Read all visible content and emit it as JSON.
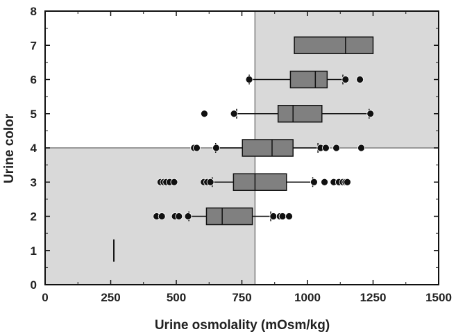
{
  "chart_data": {
    "type": "boxplot",
    "orientation": "horizontal",
    "xlabel": "Urine osmolality (mOsm/kg)",
    "ylabel": "Urine color",
    "xlim": [
      0,
      1500
    ],
    "ylim": [
      0,
      8
    ],
    "x_ticks": [
      0,
      250,
      500,
      750,
      1000,
      1250,
      1500
    ],
    "y_ticks": [
      0,
      1,
      2,
      3,
      4,
      5,
      6,
      7,
      8
    ],
    "grid": false,
    "reference_lines": {
      "x": 800,
      "y": 4
    },
    "shaded_quadrants": [
      "lower-left",
      "upper-right"
    ],
    "colors": {
      "box_fill": "#808080",
      "shade": "#d9d9d9",
      "reference_line": "#999999",
      "outlier": "#111111",
      "frame": "#111111"
    },
    "boxes": [
      {
        "color": 1,
        "median": 262,
        "single_value": true,
        "outliers": []
      },
      {
        "color": 2,
        "whisker_low": 548,
        "q1": 615,
        "median": 675,
        "q3": 790,
        "whisker_high": 860,
        "outliers": [
          425,
          445,
          495,
          510,
          545,
          870,
          895,
          905,
          930
        ]
      },
      {
        "color": 3,
        "whisker_low": 637,
        "q1": 718,
        "median": 800,
        "q3": 920,
        "whisker_high": 1020,
        "outliers": [
          440,
          452,
          462,
          475,
          492,
          605,
          618,
          630,
          1025,
          1065,
          1100,
          1120,
          1135,
          1145,
          1152
        ]
      },
      {
        "color": 4,
        "whisker_low": 650,
        "q1": 752,
        "median": 865,
        "q3": 945,
        "whisker_high": 1040,
        "outliers": [
          568,
          578,
          652,
          1050,
          1070,
          1110,
          1205
        ]
      },
      {
        "color": 5,
        "whisker_low": 730,
        "q1": 888,
        "median": 945,
        "q3": 1055,
        "whisker_high": 1235,
        "outliers": [
          607,
          720,
          1240
        ]
      },
      {
        "color": 6,
        "whisker_low": 778,
        "q1": 935,
        "median": 1030,
        "q3": 1075,
        "whisker_high": 1135,
        "outliers": [
          778,
          1145,
          1200
        ]
      },
      {
        "color": 7,
        "whisker_low": 950,
        "q1": 950,
        "median": 1145,
        "q3": 1250,
        "whisker_high": 1250,
        "outliers": []
      }
    ]
  }
}
